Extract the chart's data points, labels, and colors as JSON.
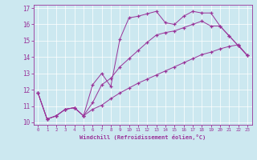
{
  "xlabel": "Windchill (Refroidissement éolien,°C)",
  "bg_color": "#cce8f0",
  "line_color": "#993399",
  "grid_color": "#ffffff",
  "xlim": [
    -0.5,
    23.5
  ],
  "ylim": [
    9.85,
    17.2
  ],
  "yticks": [
    10,
    11,
    12,
    13,
    14,
    15,
    16,
    17
  ],
  "xticks": [
    0,
    1,
    2,
    3,
    4,
    5,
    6,
    7,
    8,
    9,
    10,
    11,
    12,
    13,
    14,
    15,
    16,
    17,
    18,
    19,
    20,
    21,
    22,
    23
  ],
  "series1_x": [
    0,
    1,
    2,
    3,
    4,
    5,
    6,
    7,
    8,
    9,
    10,
    11,
    12,
    13,
    14,
    15,
    16,
    17,
    18,
    19,
    20,
    21,
    22,
    23
  ],
  "series1_y": [
    11.8,
    10.2,
    10.4,
    10.8,
    10.9,
    10.4,
    12.3,
    13.0,
    12.2,
    15.1,
    16.4,
    16.5,
    16.65,
    16.8,
    16.1,
    16.0,
    16.5,
    16.8,
    16.7,
    16.7,
    15.9,
    15.3,
    14.7,
    14.1
  ],
  "series2_x": [
    0,
    1,
    2,
    3,
    4,
    5,
    6,
    7,
    8,
    9,
    10,
    11,
    12,
    13,
    14,
    15,
    16,
    17,
    18,
    19,
    20,
    21,
    22,
    23
  ],
  "series2_y": [
    11.8,
    10.2,
    10.4,
    10.8,
    10.9,
    10.4,
    10.8,
    11.05,
    11.45,
    11.8,
    12.1,
    12.4,
    12.65,
    12.9,
    13.15,
    13.4,
    13.65,
    13.9,
    14.15,
    14.3,
    14.5,
    14.65,
    14.75,
    14.1
  ],
  "series3_x": [
    0,
    1,
    2,
    3,
    4,
    5,
    6,
    7,
    8,
    9,
    10,
    11,
    12,
    13,
    14,
    15,
    16,
    17,
    18,
    19,
    20,
    21,
    22,
    23
  ],
  "series3_y": [
    11.8,
    10.2,
    10.4,
    10.8,
    10.9,
    10.4,
    11.2,
    12.3,
    12.7,
    13.4,
    13.9,
    14.4,
    14.9,
    15.35,
    15.5,
    15.6,
    15.8,
    16.0,
    16.2,
    15.9,
    15.9,
    15.3,
    14.7,
    14.1
  ]
}
